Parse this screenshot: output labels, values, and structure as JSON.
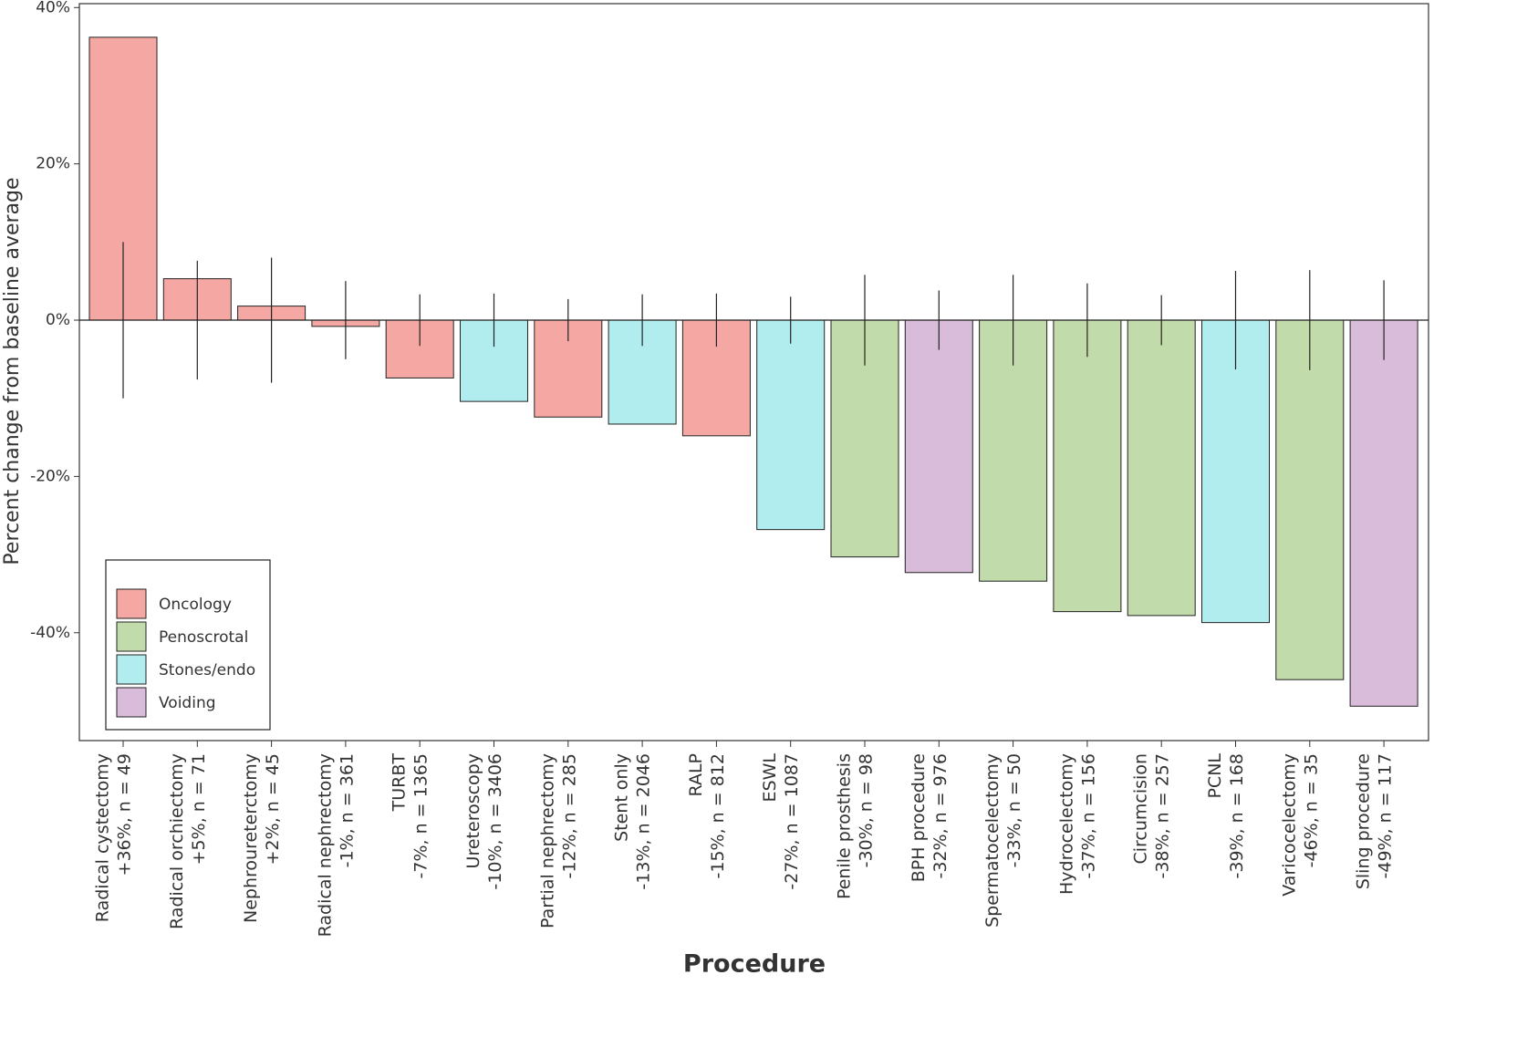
{
  "chart_data": {
    "type": "bar",
    "x_label": "Procedure",
    "y_label": "Percent change from baseline average",
    "categories": [
      [
        "Radical cystectomy",
        "+36%, n = 49"
      ],
      [
        "Radical orchiectomy",
        "+5%, n = 71"
      ],
      [
        "Nephroureterctomy",
        "+2%, n = 45"
      ],
      [
        "Radical nephrectomy",
        "-1%, n = 361"
      ],
      [
        "TURBT",
        "-7%, n = 1365"
      ],
      [
        "Ureteroscopy",
        "-10%, n = 3406"
      ],
      [
        "Partial nephrectomy",
        "-12%, n = 285"
      ],
      [
        "Stent only",
        "-13%, n = 2046"
      ],
      [
        "RALP",
        "-15%, n = 812"
      ],
      [
        "ESWL",
        "-27%, n = 1087"
      ],
      [
        "Penile prosthesis",
        "-30%, n = 98"
      ],
      [
        "BPH procedure",
        "-32%, n = 976"
      ],
      [
        "Spermatocelectomy",
        "-33%, n = 50"
      ],
      [
        "Hydrocelectomy",
        "-37%, n = 156"
      ],
      [
        "Circumcision",
        "-38%, n = 257"
      ],
      [
        "PCNL",
        "-39%, n = 168"
      ],
      [
        "Varicocelectomy",
        "-46%, n = 35"
      ],
      [
        "Sling procedure",
        "-49%, n = 117"
      ]
    ],
    "values": [
      36.2,
      5.3,
      1.8,
      -0.8,
      -7.4,
      -10.4,
      -12.4,
      -13.3,
      -14.8,
      -26.8,
      -30.3,
      -32.3,
      -33.4,
      -37.3,
      -37.8,
      -38.7,
      -46.0,
      -49.4
    ],
    "errors": [
      10,
      7.6,
      8,
      5,
      3.3,
      3.4,
      2.7,
      3.3,
      3.4,
      3.0,
      5.8,
      3.8,
      5.8,
      4.7,
      3.2,
      6.3,
      6.4,
      5.1
    ],
    "category_groups": [
      "Oncology",
      "Oncology",
      "Oncology",
      "Oncology",
      "Oncology",
      "Stones/endo",
      "Oncology",
      "Stones/endo",
      "Oncology",
      "Stones/endo",
      "Penoscrotal",
      "Voiding",
      "Penoscrotal",
      "Penoscrotal",
      "Penoscrotal",
      "Stones/endo",
      "Penoscrotal",
      "Voiding"
    ],
    "series": [
      {
        "name": "Oncology",
        "color": "#f5a8a3"
      },
      {
        "name": "Penoscrotal",
        "color": "#c1dbab"
      },
      {
        "name": "Stones/endo",
        "color": "#b1ecee"
      },
      {
        "name": "Voiding",
        "color": "#d9bcd9"
      }
    ],
    "ylim": [
      -53.8,
      40.5
    ],
    "yticks": [
      {
        "value": 40,
        "label": "40%"
      },
      {
        "value": 20,
        "label": "20%"
      },
      {
        "value": 0,
        "label": "0%"
      },
      {
        "value": -20,
        "label": "-20%"
      },
      {
        "value": -40,
        "label": "-40%"
      }
    ],
    "legend": "bottom-left"
  }
}
